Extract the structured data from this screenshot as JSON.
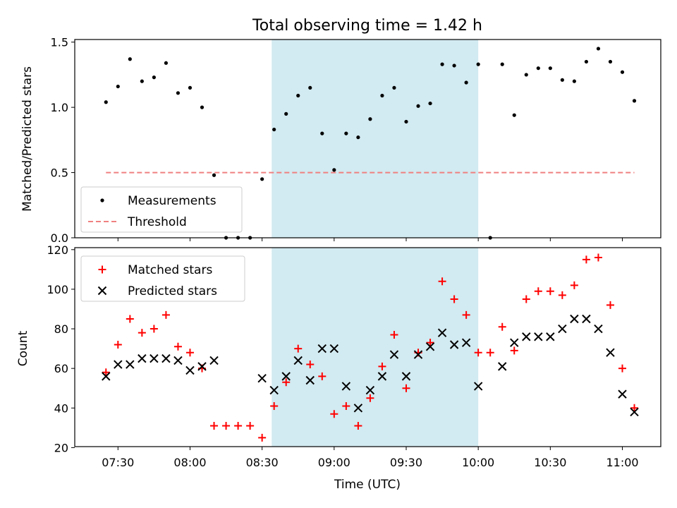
{
  "chart_data": {
    "title": "Total observing time = 1.42 h",
    "xlabel": "Time (UTC)",
    "x_ticks": [
      "07:30",
      "08:00",
      "08:30",
      "09:00",
      "09:30",
      "10:00",
      "10:30",
      "11:00"
    ],
    "xlim": [
      "07:12",
      "11:16"
    ],
    "shaded_interval": {
      "start": "08:34",
      "end": "10:00",
      "color": "#add8e6"
    },
    "panels": [
      {
        "type": "scatter",
        "ylabel": "Matched/Predicted stars",
        "ylim": [
          0,
          1.52
        ],
        "y_ticks": [
          "0.0",
          "0.5",
          "1.0",
          "1.5"
        ],
        "legend": {
          "placement": "lower-left",
          "entries": [
            "Measurements",
            "Threshold"
          ]
        },
        "series": [
          {
            "name": "Measurements",
            "color": "#000000",
            "marker": "dot",
            "points": [
              [
                "07:25",
                1.04
              ],
              [
                "07:30",
                1.16
              ],
              [
                "07:35",
                1.37
              ],
              [
                "07:40",
                1.2
              ],
              [
                "07:45",
                1.23
              ],
              [
                "07:50",
                1.34
              ],
              [
                "07:55",
                1.11
              ],
              [
                "08:00",
                1.15
              ],
              [
                "08:05",
                1.0
              ],
              [
                "08:10",
                0.48
              ],
              [
                "08:15",
                0.0
              ],
              [
                "08:20",
                0.0
              ],
              [
                "08:25",
                0.0
              ],
              [
                "08:30",
                0.45
              ],
              [
                "08:35",
                0.83
              ],
              [
                "08:40",
                0.95
              ],
              [
                "08:45",
                1.09
              ],
              [
                "08:50",
                1.15
              ],
              [
                "08:55",
                0.8
              ],
              [
                "09:00",
                0.52
              ],
              [
                "09:05",
                0.8
              ],
              [
                "09:10",
                0.77
              ],
              [
                "09:15",
                0.91
              ],
              [
                "09:20",
                1.09
              ],
              [
                "09:25",
                1.15
              ],
              [
                "09:30",
                0.89
              ],
              [
                "09:35",
                1.01
              ],
              [
                "09:40",
                1.03
              ],
              [
                "09:45",
                1.33
              ],
              [
                "09:50",
                1.32
              ],
              [
                "09:55",
                1.19
              ],
              [
                "10:00",
                1.33
              ],
              [
                "10:05",
                0.0
              ],
              [
                "10:10",
                1.33
              ],
              [
                "10:15",
                0.94
              ],
              [
                "10:20",
                1.25
              ],
              [
                "10:25",
                1.3
              ],
              [
                "10:30",
                1.3
              ],
              [
                "10:35",
                1.21
              ],
              [
                "10:40",
                1.2
              ],
              [
                "10:45",
                1.35
              ],
              [
                "10:50",
                1.45
              ],
              [
                "10:55",
                1.35
              ],
              [
                "11:00",
                1.27
              ],
              [
                "11:05",
                1.05
              ]
            ]
          },
          {
            "name": "Threshold",
            "color": "#f08080",
            "style": "dashed",
            "points": [
              [
                "07:25",
                0.5
              ],
              [
                "11:05",
                0.5
              ]
            ]
          }
        ]
      },
      {
        "type": "scatter",
        "ylabel": "Count",
        "ylim": [
          20.5,
          121
        ],
        "y_ticks": [
          "20",
          "40",
          "60",
          "80",
          "100",
          "120"
        ],
        "legend": {
          "placement": "top-left",
          "entries": [
            "Matched stars",
            "Predicted stars"
          ]
        },
        "series": [
          {
            "name": "Matched stars",
            "color": "#ff0000",
            "marker": "plus",
            "points": [
              [
                "07:25",
                58
              ],
              [
                "07:30",
                72
              ],
              [
                "07:35",
                85
              ],
              [
                "07:40",
                78
              ],
              [
                "07:45",
                80
              ],
              [
                "07:50",
                87
              ],
              [
                "07:55",
                71
              ],
              [
                "08:00",
                68
              ],
              [
                "08:05",
                60
              ],
              [
                "08:10",
                31
              ],
              [
                "08:15",
                31
              ],
              [
                "08:20",
                31
              ],
              [
                "08:25",
                31
              ],
              [
                "08:30",
                25
              ],
              [
                "08:35",
                41
              ],
              [
                "08:40",
                53
              ],
              [
                "08:45",
                70
              ],
              [
                "08:50",
                62
              ],
              [
                "08:55",
                56
              ],
              [
                "09:00",
                37
              ],
              [
                "09:05",
                41
              ],
              [
                "09:10",
                31
              ],
              [
                "09:15",
                45
              ],
              [
                "09:20",
                61
              ],
              [
                "09:25",
                77
              ],
              [
                "09:30",
                50
              ],
              [
                "09:35",
                68
              ],
              [
                "09:40",
                73
              ],
              [
                "09:45",
                104
              ],
              [
                "09:50",
                95
              ],
              [
                "09:55",
                87
              ],
              [
                "10:00",
                68
              ],
              [
                "10:05",
                68
              ],
              [
                "10:10",
                81
              ],
              [
                "10:15",
                69
              ],
              [
                "10:20",
                95
              ],
              [
                "10:25",
                99
              ],
              [
                "10:30",
                99
              ],
              [
                "10:35",
                97
              ],
              [
                "10:40",
                102
              ],
              [
                "10:45",
                115
              ],
              [
                "10:50",
                116
              ],
              [
                "10:55",
                92
              ],
              [
                "11:00",
                60
              ],
              [
                "11:05",
                40
              ]
            ]
          },
          {
            "name": "Predicted stars",
            "color": "#000000",
            "marker": "x",
            "points": [
              [
                "07:25",
                56
              ],
              [
                "07:30",
                62
              ],
              [
                "07:35",
                62
              ],
              [
                "07:40",
                65
              ],
              [
                "07:45",
                65
              ],
              [
                "07:50",
                65
              ],
              [
                "07:55",
                64
              ],
              [
                "08:00",
                59
              ],
              [
                "08:05",
                61
              ],
              [
                "08:10",
                64
              ],
              [
                "08:30",
                55
              ],
              [
                "08:35",
                49
              ],
              [
                "08:40",
                56
              ],
              [
                "08:45",
                64
              ],
              [
                "08:50",
                54
              ],
              [
                "08:55",
                70
              ],
              [
                "09:00",
                70
              ],
              [
                "09:05",
                51
              ],
              [
                "09:10",
                40
              ],
              [
                "09:15",
                49
              ],
              [
                "09:20",
                56
              ],
              [
                "09:25",
                67
              ],
              [
                "09:30",
                56
              ],
              [
                "09:35",
                67
              ],
              [
                "09:40",
                71
              ],
              [
                "09:45",
                78
              ],
              [
                "09:50",
                72
              ],
              [
                "09:55",
                73
              ],
              [
                "10:00",
                51
              ],
              [
                "10:10",
                61
              ],
              [
                "10:15",
                73
              ],
              [
                "10:20",
                76
              ],
              [
                "10:25",
                76
              ],
              [
                "10:30",
                76
              ],
              [
                "10:35",
                80
              ],
              [
                "10:40",
                85
              ],
              [
                "10:45",
                85
              ],
              [
                "10:50",
                80
              ],
              [
                "10:55",
                68
              ],
              [
                "11:00",
                47
              ],
              [
                "11:05",
                38
              ]
            ]
          }
        ]
      }
    ]
  }
}
